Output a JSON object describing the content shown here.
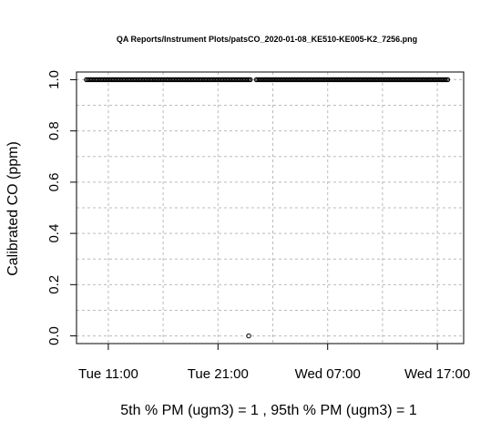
{
  "chart_data": {
    "type": "scatter",
    "title": "QA Reports/Instrument Plots/patsCO_2020-01-08_KE510-KE005-K2_7256.png",
    "ylabel": "Calibrated CO (ppm)",
    "xlabel": "5th % PM (ugm3) =  1 , 95th % PM (ugm3)  =  1",
    "x_ticks": [
      "Tue 11:00",
      "Tue 21:00",
      "Wed 07:00",
      "Wed 17:00"
    ],
    "x_tick_hours": [
      0,
      10,
      20,
      30
    ],
    "y_ticks": [
      "0.0",
      "0.2",
      "0.4",
      "0.6",
      "0.8",
      "1.0"
    ],
    "ylim": [
      -0.03,
      1.03
    ],
    "xlim_hours": [
      -2.9,
      32.4
    ],
    "grid": true,
    "series": [
      {
        "segments": [
          {
            "x_start_hours": -2.0,
            "x_end_hours": 13.0,
            "y": 1.0
          },
          {
            "x_start_hours": 13.5,
            "x_end_hours": 31.0,
            "y": 1.0
          }
        ],
        "points": [
          {
            "x_hours": 12.8,
            "y": 0.0
          }
        ]
      }
    ]
  }
}
